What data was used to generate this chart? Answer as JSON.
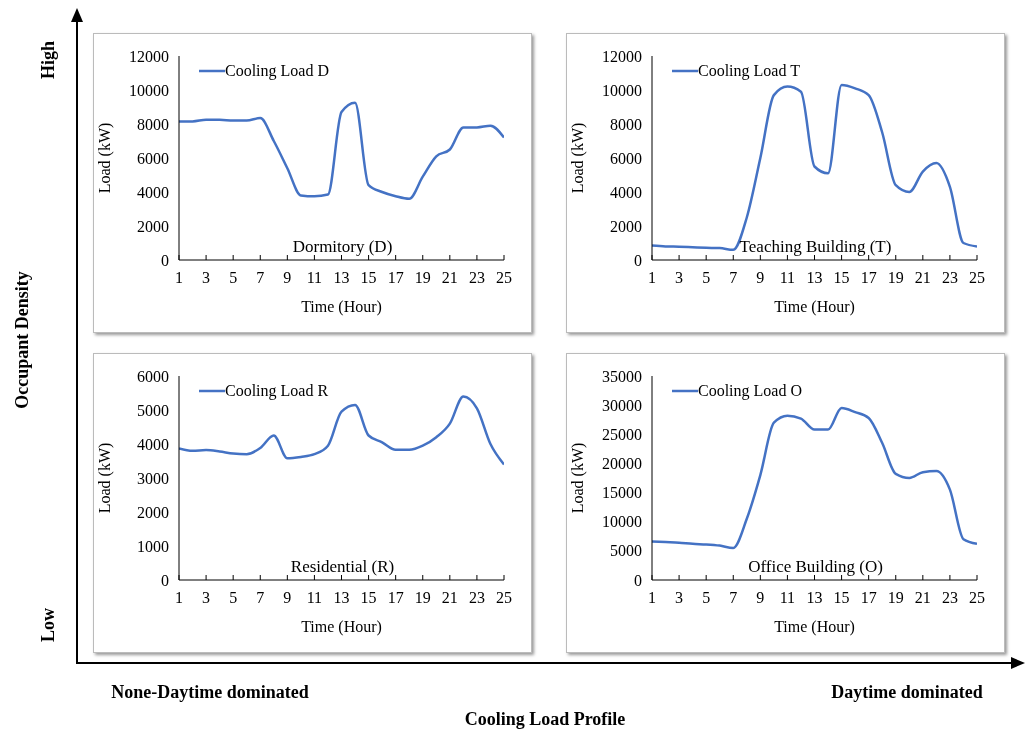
{
  "chart_data": [
    {
      "type": "line",
      "xlabel": "Time (Hour)",
      "ylabel": "Load (kW)",
      "annotations": [
        "Dormitory (D)"
      ],
      "legend": "top left",
      "x": [
        1,
        2,
        3,
        4,
        5,
        6,
        7,
        8,
        9,
        10,
        11,
        12,
        13,
        14,
        15,
        16,
        17,
        18,
        19,
        20,
        21,
        22,
        23,
        24,
        25
      ],
      "series": [
        {
          "name": "Cooling Load D",
          "color": "#4472c4",
          "values": [
            8150,
            8150,
            8250,
            8250,
            8200,
            8200,
            8350,
            7000,
            5400,
            3800,
            3750,
            3850,
            8700,
            9250,
            4400,
            4000,
            3750,
            3600,
            4900,
            6100,
            6500,
            7800,
            7800,
            7900,
            7200
          ]
        }
      ],
      "xlim": [
        1,
        25
      ],
      "xticks": [
        1,
        3,
        5,
        7,
        9,
        11,
        13,
        15,
        17,
        19,
        21,
        23,
        25
      ],
      "ylim": [
        0,
        12000
      ],
      "yticks": [
        0,
        2000,
        4000,
        6000,
        8000,
        10000,
        12000
      ]
    },
    {
      "type": "line",
      "xlabel": "Time (Hour)",
      "ylabel": "Load (kW)",
      "annotations": [
        "Teaching Building (T)"
      ],
      "legend": "top left",
      "x": [
        1,
        2,
        3,
        4,
        5,
        6,
        7,
        8,
        9,
        10,
        11,
        12,
        13,
        14,
        15,
        16,
        17,
        18,
        19,
        20,
        21,
        22,
        23,
        24,
        25
      ],
      "series": [
        {
          "name": "Cooling Load T",
          "color": "#4472c4",
          "values": [
            850,
            800,
            780,
            750,
            720,
            700,
            600,
            2500,
            6000,
            9700,
            10200,
            9900,
            5500,
            5100,
            10300,
            10100,
            9700,
            7500,
            4400,
            4000,
            5200,
            5700,
            4300,
            1000,
            800
          ]
        }
      ],
      "xlim": [
        1,
        25
      ],
      "xticks": [
        1,
        3,
        5,
        7,
        9,
        11,
        13,
        15,
        17,
        19,
        21,
        23,
        25
      ],
      "ylim": [
        0,
        12000
      ],
      "yticks": [
        0,
        2000,
        4000,
        6000,
        8000,
        10000,
        12000
      ]
    },
    {
      "type": "line",
      "xlabel": "Time (Hour)",
      "ylabel": "Load (kW)",
      "annotations": [
        "Residential (R)"
      ],
      "legend": "top left",
      "x": [
        1,
        2,
        3,
        4,
        5,
        6,
        7,
        8,
        9,
        10,
        11,
        12,
        13,
        14,
        15,
        16,
        17,
        18,
        19,
        20,
        21,
        22,
        23,
        24,
        25
      ],
      "series": [
        {
          "name": "Cooling Load R",
          "color": "#4472c4",
          "values": [
            3870,
            3800,
            3820,
            3780,
            3720,
            3700,
            3880,
            4250,
            3580,
            3620,
            3700,
            3950,
            4950,
            5150,
            4250,
            4050,
            3830,
            3830,
            3950,
            4200,
            4600,
            5400,
            5050,
            4000,
            3400
          ]
        }
      ],
      "xlim": [
        1,
        25
      ],
      "xticks": [
        1,
        3,
        5,
        7,
        9,
        11,
        13,
        15,
        17,
        19,
        21,
        23,
        25
      ],
      "ylim": [
        0,
        6000
      ],
      "yticks": [
        0,
        1000,
        2000,
        3000,
        4000,
        5000,
        6000
      ]
    },
    {
      "type": "line",
      "xlabel": "Time (Hour)",
      "ylabel": "Load (kW)",
      "annotations": [
        "Office Building (O)"
      ],
      "legend": "top left",
      "x": [
        1,
        2,
        3,
        4,
        5,
        6,
        7,
        8,
        9,
        10,
        11,
        12,
        13,
        14,
        15,
        16,
        17,
        18,
        19,
        20,
        21,
        22,
        23,
        24,
        25
      ],
      "series": [
        {
          "name": "Cooling Load O",
          "color": "#4472c4",
          "values": [
            6600,
            6500,
            6400,
            6200,
            6100,
            5900,
            5500,
            10500,
            18000,
            27000,
            28200,
            27700,
            25800,
            25800,
            29500,
            28800,
            27800,
            23500,
            18200,
            17500,
            18500,
            18700,
            15500,
            7000,
            6200
          ]
        }
      ],
      "xlim": [
        1,
        25
      ],
      "xticks": [
        1,
        3,
        5,
        7,
        9,
        11,
        13,
        15,
        17,
        19,
        21,
        23,
        25
      ],
      "ylim": [
        0,
        35000
      ],
      "yticks": [
        0,
        5000,
        10000,
        15000,
        20000,
        25000,
        30000,
        35000
      ]
    },
    {
      "type": "other",
      "xlabel": "Cooling Load Profile",
      "ylabel": "Occupant Density",
      "annotations": [
        "High",
        "Low",
        "None-Daytime dominated",
        "Daytime dominated"
      ]
    }
  ]
}
